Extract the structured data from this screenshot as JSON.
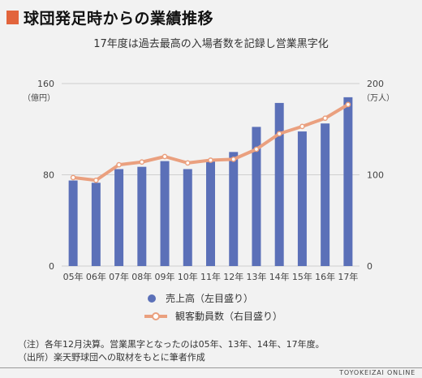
{
  "title": "球団発足時からの業績推移",
  "subtitle": "17年度は過去最高の入場者数を記録し営業黒字化",
  "colors": {
    "accent": "#e2643c",
    "bar": "#5b70b8",
    "line": "#eaa07f"
  },
  "chart_data": {
    "type": "bar+line",
    "categories": [
      "05年",
      "06年",
      "07年",
      "08年",
      "09年",
      "10年",
      "11年",
      "12年",
      "13年",
      "14年",
      "15年",
      "16年",
      "17年"
    ],
    "left_axis": {
      "label": "（億円）",
      "ylim": [
        0,
        160
      ],
      "ticks": [
        0,
        80,
        160
      ]
    },
    "right_axis": {
      "label": "（万人）",
      "ylim": [
        0,
        200
      ],
      "ticks": [
        0,
        100,
        200
      ]
    },
    "series": [
      {
        "name": "売上高（左目盛り）",
        "type": "bar",
        "axis": "left",
        "values": [
          75,
          73,
          85,
          87,
          92,
          85,
          93,
          100,
          122,
          143,
          118,
          125,
          148
        ]
      },
      {
        "name": "観客動員数（右目盛り）",
        "type": "line",
        "axis": "right",
        "values": [
          97,
          94,
          111,
          114,
          120,
          113,
          116,
          117,
          128,
          145,
          153,
          162,
          177
        ]
      }
    ]
  },
  "notes": [
    "（注）各年12月決算。営業黒字となったのは05年、13年、14年、17年度。",
    "（出所）楽天野球団への取材をもとに筆者作成"
  ],
  "credit": "TOYOKEIZAI ONLINE"
}
